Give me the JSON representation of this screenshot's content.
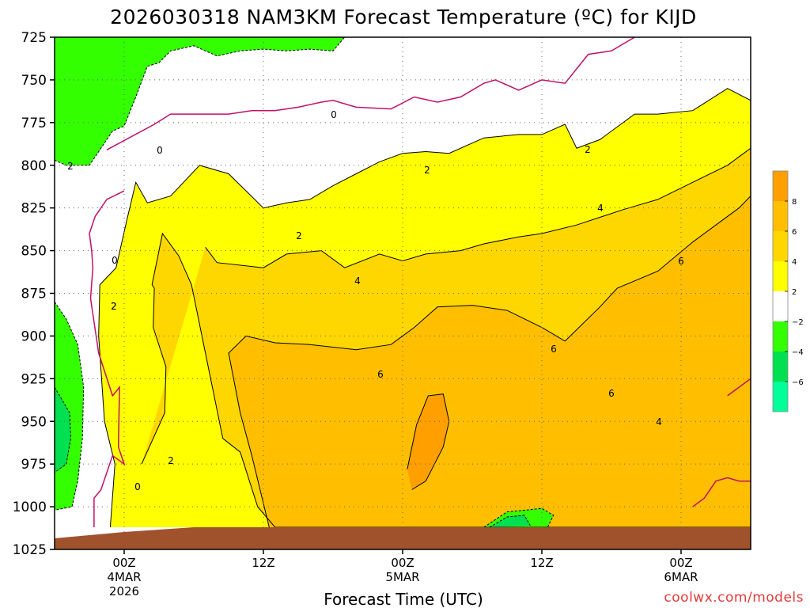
{
  "title": "2026030318 NAM3KM Forecast Temperature (ºC) for KIJD",
  "credit": "coolwx.com/models",
  "colors": {
    "white": "#ffffff",
    "lt2": "#ffff00",
    "lt4": "#ffd700",
    "lt6": "#ffbf00",
    "lt8": "#ff9f00",
    "g2": "#33ff00",
    "g4": "#00e050",
    "g6": "#00ff99",
    "ground": "#a0522d",
    "zero_line": "#c0106a"
  },
  "chart_data": {
    "type": "heatmap",
    "title": "2026030318 NAM3KM Forecast Temperature (ºC) for KIJD",
    "xlabel": "Forecast Time (UTC)",
    "ylabel": "",
    "y_axis": {
      "unit": "hPa",
      "ticks": [
        725,
        750,
        775,
        800,
        825,
        850,
        875,
        900,
        925,
        950,
        975,
        1000,
        1025
      ],
      "range": [
        725,
        1025
      ],
      "inverted": true,
      "grid": true
    },
    "x_axis": {
      "range_hours_from_init": [
        0,
        60
      ],
      "tick_labels": [
        {
          "hour": 6,
          "lines": [
            "00Z",
            "4MAR",
            "2026"
          ]
        },
        {
          "hour": 18,
          "lines": [
            "12Z"
          ]
        },
        {
          "hour": 30,
          "lines": [
            "00Z",
            "5MAR"
          ]
        },
        {
          "hour": 42,
          "lines": [
            "12Z"
          ]
        },
        {
          "hour": 54,
          "lines": [
            "00Z",
            "6MAR"
          ]
        }
      ],
      "grid": true
    },
    "legend": {
      "placement": "right",
      "tick_labels": [
        "8",
        "6",
        "4",
        "2",
        "−2",
        "−4",
        "−6"
      ],
      "bins": [
        {
          "range": "8 to 10",
          "color": "#ff9f00"
        },
        {
          "range": "6 to 8",
          "color": "#ffbf00"
        },
        {
          "range": "4 to 6",
          "color": "#ffd700"
        },
        {
          "range": "2 to 4",
          "color": "#ffff00"
        },
        {
          "range": "-2 to 2",
          "color": "#ffffff"
        },
        {
          "range": "-4 to -2",
          "color": "#33ff00"
        },
        {
          "range": "-6 to -4",
          "color": "#00e050"
        },
        {
          "range": "-8 to -6",
          "color": "#00ff99"
        }
      ]
    },
    "contour_labels": [
      "0",
      "0",
      "0",
      "0",
      "2",
      "2",
      "2",
      "2",
      "2",
      "2",
      "4",
      "4",
      "4",
      "6",
      "6",
      "6",
      "6",
      "2"
    ],
    "regions": [
      {
        "name": "ge2",
        "fill": "#ffff00",
        "points": [
          [
            4.8,
            1012
          ],
          [
            5.2,
            975
          ],
          [
            4.3,
            950
          ],
          [
            3.8,
            900
          ],
          [
            3.9,
            870
          ],
          [
            5.3,
            860
          ],
          [
            6.2,
            833
          ],
          [
            7,
            810
          ],
          [
            8,
            822
          ],
          [
            10,
            818
          ],
          [
            12.5,
            800
          ],
          [
            15,
            805
          ],
          [
            18,
            825
          ],
          [
            20,
            822
          ],
          [
            22,
            820
          ],
          [
            24,
            812
          ],
          [
            26,
            805
          ],
          [
            28,
            798
          ],
          [
            30,
            793
          ],
          [
            32,
            792
          ],
          [
            34,
            793
          ],
          [
            37,
            784
          ],
          [
            40,
            782
          ],
          [
            42,
            782
          ],
          [
            44,
            776
          ],
          [
            45,
            790
          ],
          [
            47,
            785
          ],
          [
            50,
            770
          ],
          [
            52,
            770
          ],
          [
            55,
            768
          ],
          [
            58,
            755
          ],
          [
            60,
            762
          ],
          [
            60,
            1012
          ]
        ]
      },
      {
        "name": "ge4",
        "fill": "#ffd700",
        "points": [
          [
            7.5,
            975
          ],
          [
            9.5,
            945
          ],
          [
            9.6,
            918
          ],
          [
            8.5,
            895
          ],
          [
            8.6,
            872
          ],
          [
            8.4,
            870
          ],
          [
            9.3,
            840
          ],
          [
            10.7,
            853
          ],
          [
            11.8,
            870
          ],
          [
            13.3,
            920
          ],
          [
            14.5,
            960
          ],
          [
            16,
            968
          ],
          [
            17.5,
            1000
          ],
          [
            19,
            1012
          ],
          [
            60,
            1012
          ],
          [
            60,
            790
          ],
          [
            58,
            800
          ],
          [
            55,
            810
          ],
          [
            52,
            820
          ],
          [
            49,
            826
          ],
          [
            45,
            835
          ],
          [
            42,
            840
          ],
          [
            40,
            842
          ],
          [
            37,
            846
          ],
          [
            35,
            850
          ],
          [
            32,
            852
          ],
          [
            30,
            856
          ],
          [
            28,
            852
          ],
          [
            25,
            860
          ],
          [
            23,
            850
          ],
          [
            20,
            852
          ],
          [
            18,
            860
          ],
          [
            14,
            857
          ],
          [
            13,
            848
          ]
        ]
      },
      {
        "name": "ge6",
        "fill": "#ffbf00",
        "points": [
          [
            18.5,
            1012
          ],
          [
            17,
            970
          ],
          [
            16,
            945
          ],
          [
            15,
            910
          ],
          [
            16.5,
            900
          ],
          [
            19,
            904
          ],
          [
            22,
            905
          ],
          [
            26,
            908
          ],
          [
            29,
            905
          ],
          [
            31,
            895
          ],
          [
            33,
            883
          ],
          [
            36,
            882
          ],
          [
            39,
            885
          ],
          [
            42,
            895
          ],
          [
            44,
            903
          ],
          [
            47,
            883
          ],
          [
            48.5,
            872
          ],
          [
            52,
            862
          ],
          [
            55,
            845
          ],
          [
            57,
            835
          ],
          [
            59,
            825
          ],
          [
            60,
            818
          ],
          [
            60,
            1012
          ]
        ]
      },
      {
        "name": "ge8",
        "fill": "#ff9f00",
        "points": [
          [
            30.4,
            978
          ],
          [
            31.2,
            952
          ],
          [
            32.2,
            935
          ],
          [
            33.5,
            934
          ],
          [
            34,
            950
          ],
          [
            33.5,
            965
          ],
          [
            32,
            985
          ],
          [
            30.8,
            990
          ]
        ]
      },
      {
        "name": "lt_m2_top",
        "fill": "#33ff00",
        "points": [
          [
            0,
            725
          ],
          [
            0,
            797
          ],
          [
            1,
            800
          ],
          [
            3,
            800
          ],
          [
            5,
            780
          ],
          [
            6,
            777
          ],
          [
            7,
            760
          ],
          [
            8,
            742
          ],
          [
            9,
            740
          ],
          [
            10,
            733
          ],
          [
            12,
            730
          ],
          [
            14,
            736
          ],
          [
            16,
            733
          ],
          [
            18,
            732
          ],
          [
            20,
            733
          ],
          [
            22,
            732
          ],
          [
            24,
            733
          ],
          [
            25,
            725
          ]
        ]
      },
      {
        "name": "lt_m2_left",
        "fill": "#33ff00",
        "points": [
          [
            0,
            880
          ],
          [
            1,
            890
          ],
          [
            2,
            905
          ],
          [
            2.5,
            930
          ],
          [
            2.4,
            960
          ],
          [
            2,
            985
          ],
          [
            1.5,
            1000
          ],
          [
            0,
            1002
          ]
        ]
      },
      {
        "name": "lt_m4_left",
        "fill": "#00e050",
        "points": [
          [
            0,
            930
          ],
          [
            1.3,
            945
          ],
          [
            1.4,
            960
          ],
          [
            1,
            975
          ],
          [
            0,
            980
          ]
        ]
      },
      {
        "name": "lt_m2_bottom",
        "fill": "#33ff00",
        "points": [
          [
            37,
            1012
          ],
          [
            39,
            1003
          ],
          [
            42,
            1001
          ],
          [
            43,
            1005
          ],
          [
            42.5,
            1012
          ]
        ]
      },
      {
        "name": "lt_m4_bottom",
        "fill": "#00e050",
        "points": [
          [
            37.5,
            1012
          ],
          [
            39,
            1006
          ],
          [
            40.5,
            1005
          ],
          [
            41,
            1011
          ]
        ]
      }
    ],
    "zero_lines": [
      [
        [
          4.5,
          791
        ],
        [
          8.6,
          776
        ],
        [
          10,
          770
        ],
        [
          13,
          770
        ],
        [
          15,
          770
        ],
        [
          17,
          768
        ],
        [
          19,
          768
        ],
        [
          21,
          766
        ],
        [
          23,
          763
        ],
        [
          24,
          762
        ],
        [
          26,
          766
        ],
        [
          29,
          767
        ],
        [
          31,
          760
        ],
        [
          33,
          763
        ],
        [
          35,
          760
        ],
        [
          37,
          752
        ],
        [
          38,
          750
        ],
        [
          40,
          756
        ],
        [
          42,
          750
        ],
        [
          44,
          752
        ],
        [
          46,
          735
        ],
        [
          48,
          733
        ],
        [
          50,
          725
        ]
      ],
      [
        [
          3.4,
          1012
        ],
        [
          3.4,
          995
        ],
        [
          4,
          990
        ],
        [
          5,
          970
        ],
        [
          6,
          975
        ],
        [
          5.5,
          965
        ],
        [
          5.6,
          930
        ],
        [
          5,
          935
        ],
        [
          3.8,
          910
        ],
        [
          3.1,
          878
        ],
        [
          3.3,
          860
        ],
        [
          3.2,
          850
        ],
        [
          3,
          840
        ],
        [
          3.5,
          830
        ],
        [
          4.5,
          820
        ],
        [
          6,
          815
        ]
      ],
      [
        [
          55,
          1000
        ],
        [
          56,
          995
        ],
        [
          57,
          985
        ],
        [
          58,
          983
        ],
        [
          59,
          985
        ],
        [
          60,
          985
        ]
      ],
      [
        [
          58,
          935
        ],
        [
          59,
          930
        ],
        [
          60,
          925
        ]
      ]
    ],
    "ground": {
      "fill": "#a0522d",
      "top_pressure": 1012
    }
  }
}
